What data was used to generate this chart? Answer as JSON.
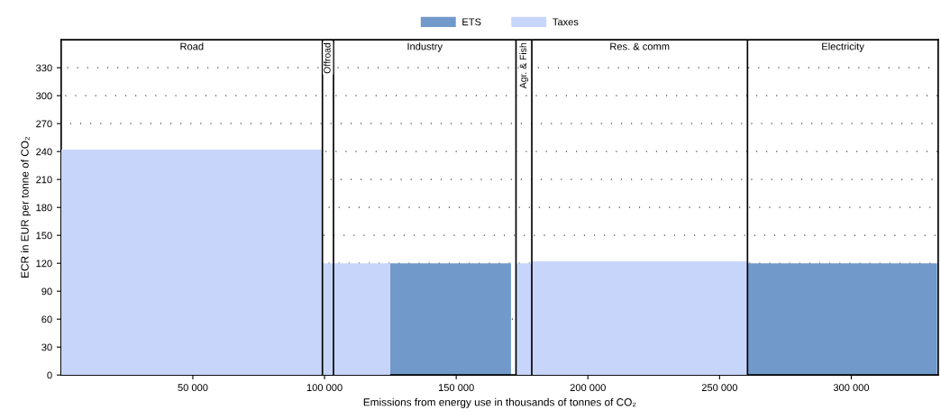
{
  "chart_data": {
    "type": "area",
    "xlabel": "Emissions from energy use in thousands of tonnes of CO₂",
    "ylabel": "ECR in EUR per tonne of CO₂",
    "xlim": [
      0,
      333000
    ],
    "ylim": [
      0,
      360
    ],
    "xticks": [
      {
        "value": 50000,
        "label": "50 000"
      },
      {
        "value": 100000,
        "label": "100 000"
      },
      {
        "value": 150000,
        "label": "150 000"
      },
      {
        "value": 200000,
        "label": "200 000"
      },
      {
        "value": 250000,
        "label": "250 000"
      },
      {
        "value": 300000,
        "label": "300 000"
      }
    ],
    "yticks": [
      0,
      30,
      60,
      90,
      120,
      150,
      180,
      210,
      240,
      270,
      300,
      330
    ],
    "grid": "y",
    "legend": "top",
    "series": [
      {
        "name": "ETS",
        "color": "#7199c9",
        "x": [
          124900,
          170800,
          170800,
          260600,
          260600,
          332600
        ],
        "values": [
          120,
          120,
          0,
          0,
          120,
          120
        ]
      },
      {
        "name": "Taxes",
        "color": "#c8d5fb",
        "x": [
          0,
          99200,
          99200,
          124900,
          124900,
          172700,
          172700,
          178700,
          178700,
          260600
        ],
        "values": [
          242,
          242,
          120,
          120,
          0,
          0,
          120,
          120,
          122,
          122
        ]
      }
    ],
    "ref_lines": [
      {
        "axis": "x",
        "value": 99200
      },
      {
        "axis": "x",
        "value": 103400
      },
      {
        "axis": "x",
        "value": 172700
      },
      {
        "axis": "x",
        "value": 178700
      },
      {
        "axis": "x",
        "value": 260600
      }
    ],
    "annotations": [
      "Road",
      "Offroad",
      "Industry",
      "Agr. & Fish",
      "Res. & comm",
      "Electricity"
    ]
  }
}
